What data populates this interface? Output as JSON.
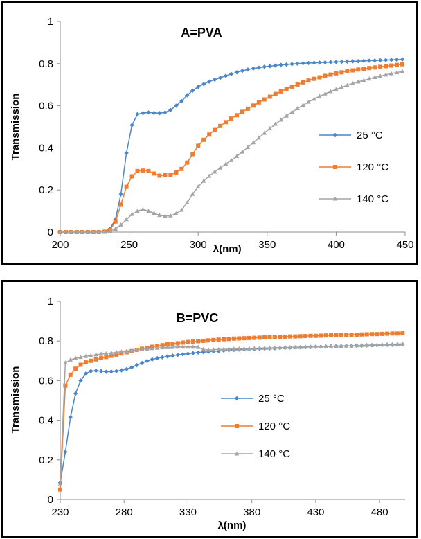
{
  "chart_data": [
    {
      "type": "line",
      "title": "A=PVA",
      "xlabel": "λ(nm)",
      "ylabel": "Transmission",
      "xlim": [
        200,
        450
      ],
      "ylim": [
        0,
        1
      ],
      "xticks": [
        "200",
        "250",
        "300",
        "350",
        "400",
        "450"
      ],
      "yticks": [
        "0",
        "0.2",
        "0.4",
        "0.6",
        "0.8",
        "1"
      ],
      "legend_position": "right",
      "grid": false,
      "series": [
        {
          "name": "25 °C",
          "color": "#4a86c8",
          "marker": "diamond",
          "x": [
            200,
            204,
            208,
            212,
            216,
            220,
            224,
            228,
            232,
            236,
            240,
            244,
            248,
            252,
            256,
            260,
            264,
            268,
            272,
            276,
            280,
            284,
            288,
            292,
            296,
            300,
            304,
            308,
            312,
            316,
            320,
            324,
            328,
            332,
            336,
            340,
            344,
            348,
            352,
            356,
            360,
            364,
            368,
            372,
            376,
            380,
            384,
            388,
            392,
            396,
            400,
            404,
            408,
            412,
            416,
            420,
            424,
            428,
            432,
            436,
            440,
            444,
            448
          ],
          "y": [
            0,
            0,
            0,
            0,
            0,
            0,
            0,
            0,
            0.002,
            0.015,
            0.06,
            0.18,
            0.375,
            0.508,
            0.56,
            0.565,
            0.568,
            0.566,
            0.565,
            0.568,
            0.58,
            0.6,
            0.622,
            0.65,
            0.672,
            0.69,
            0.703,
            0.715,
            0.724,
            0.733,
            0.742,
            0.751,
            0.759,
            0.766,
            0.772,
            0.777,
            0.781,
            0.785,
            0.788,
            0.791,
            0.794,
            0.796,
            0.798,
            0.8,
            0.802,
            0.803,
            0.804,
            0.805,
            0.806,
            0.807,
            0.808,
            0.809,
            0.81,
            0.811,
            0.812,
            0.813,
            0.814,
            0.815,
            0.816,
            0.817,
            0.818,
            0.819,
            0.82
          ]
        },
        {
          "name": "120 °C",
          "color": "#ed7d31",
          "marker": "square",
          "x": [
            200,
            204,
            208,
            212,
            216,
            220,
            224,
            228,
            232,
            236,
            240,
            244,
            248,
            252,
            256,
            260,
            264,
            268,
            272,
            276,
            280,
            284,
            288,
            292,
            296,
            300,
            304,
            308,
            312,
            316,
            320,
            324,
            328,
            332,
            336,
            340,
            344,
            348,
            352,
            356,
            360,
            364,
            368,
            372,
            376,
            380,
            384,
            388,
            392,
            396,
            400,
            404,
            408,
            412,
            416,
            420,
            424,
            428,
            432,
            436,
            440,
            444,
            448
          ],
          "y": [
            0,
            0,
            0,
            0,
            0,
            0,
            0,
            0,
            0.002,
            0.01,
            0.05,
            0.13,
            0.215,
            0.265,
            0.29,
            0.292,
            0.29,
            0.278,
            0.268,
            0.27,
            0.272,
            0.283,
            0.3,
            0.33,
            0.37,
            0.41,
            0.438,
            0.463,
            0.485,
            0.504,
            0.522,
            0.539,
            0.555,
            0.571,
            0.586,
            0.601,
            0.616,
            0.63,
            0.643,
            0.656,
            0.668,
            0.68,
            0.691,
            0.701,
            0.711,
            0.72,
            0.728,
            0.735,
            0.742,
            0.748,
            0.754,
            0.759,
            0.764,
            0.768,
            0.772,
            0.776,
            0.779,
            0.782,
            0.785,
            0.788,
            0.791,
            0.794,
            0.797
          ]
        },
        {
          "name": "140 °C",
          "color": "#a5a5a5",
          "marker": "triangle",
          "x": [
            200,
            204,
            208,
            212,
            216,
            220,
            224,
            228,
            232,
            236,
            240,
            244,
            248,
            252,
            256,
            260,
            264,
            268,
            272,
            276,
            280,
            284,
            288,
            292,
            296,
            300,
            304,
            308,
            312,
            316,
            320,
            324,
            328,
            332,
            336,
            340,
            344,
            348,
            352,
            356,
            360,
            364,
            368,
            372,
            376,
            380,
            384,
            388,
            392,
            396,
            400,
            404,
            408,
            412,
            416,
            420,
            424,
            428,
            432,
            436,
            440,
            444,
            448
          ],
          "y": [
            0,
            0,
            0,
            0,
            0,
            0,
            0,
            0,
            0.001,
            0.005,
            0.015,
            0.035,
            0.06,
            0.085,
            0.1,
            0.108,
            0.1,
            0.09,
            0.08,
            0.076,
            0.078,
            0.088,
            0.105,
            0.14,
            0.18,
            0.215,
            0.243,
            0.266,
            0.286,
            0.305,
            0.323,
            0.341,
            0.36,
            0.381,
            0.403,
            0.425,
            0.448,
            0.47,
            0.492,
            0.513,
            0.533,
            0.552,
            0.57,
            0.587,
            0.603,
            0.618,
            0.632,
            0.645,
            0.657,
            0.668,
            0.678,
            0.688,
            0.697,
            0.706,
            0.714,
            0.721,
            0.728,
            0.735,
            0.741,
            0.747,
            0.753,
            0.758,
            0.763
          ]
        }
      ]
    },
    {
      "type": "line",
      "title": "B=PVC",
      "xlabel": "λ(nm)",
      "ylabel": "Transmission",
      "xlim": [
        230,
        500
      ],
      "ylim": [
        0,
        1
      ],
      "xticks": [
        "230",
        "280",
        "330",
        "380",
        "430",
        "480"
      ],
      "yticks": [
        "0",
        "0.2",
        "0.4",
        "0.6",
        "0.8",
        "1"
      ],
      "legend_position": "center",
      "grid": false,
      "series": [
        {
          "name": "25 °C",
          "color": "#4a86c8",
          "marker": "diamond",
          "x": [
            230,
            234,
            238,
            242,
            246,
            250,
            254,
            258,
            262,
            266,
            270,
            274,
            278,
            282,
            286,
            290,
            294,
            298,
            302,
            306,
            310,
            314,
            318,
            322,
            326,
            330,
            334,
            338,
            342,
            346,
            350,
            354,
            358,
            362,
            366,
            370,
            374,
            378,
            382,
            386,
            390,
            394,
            398,
            402,
            406,
            410,
            414,
            418,
            422,
            426,
            430,
            434,
            438,
            442,
            446,
            450,
            454,
            458,
            462,
            466,
            470,
            474,
            478,
            482,
            486,
            490,
            494,
            498
          ],
          "y": [
            0.085,
            0.24,
            0.415,
            0.535,
            0.6,
            0.635,
            0.648,
            0.65,
            0.648,
            0.645,
            0.646,
            0.648,
            0.652,
            0.658,
            0.667,
            0.678,
            0.689,
            0.699,
            0.707,
            0.713,
            0.718,
            0.722,
            0.726,
            0.73,
            0.733,
            0.736,
            0.739,
            0.742,
            0.744,
            0.746,
            0.748,
            0.75,
            0.752,
            0.754,
            0.755,
            0.757,
            0.758,
            0.759,
            0.76,
            0.761,
            0.762,
            0.763,
            0.764,
            0.765,
            0.766,
            0.767,
            0.768,
            0.768,
            0.769,
            0.77,
            0.771,
            0.771,
            0.772,
            0.773,
            0.774,
            0.774,
            0.775,
            0.776,
            0.777,
            0.777,
            0.778,
            0.779,
            0.779,
            0.78,
            0.781,
            0.781,
            0.782,
            0.783
          ]
        },
        {
          "name": "120  °C",
          "color": "#ed7d31",
          "marker": "square",
          "x": [
            230,
            234,
            238,
            242,
            246,
            250,
            254,
            258,
            262,
            266,
            270,
            274,
            278,
            282,
            286,
            290,
            294,
            298,
            302,
            306,
            310,
            314,
            318,
            322,
            326,
            330,
            334,
            338,
            342,
            346,
            350,
            354,
            358,
            362,
            366,
            370,
            374,
            378,
            382,
            386,
            390,
            394,
            398,
            402,
            406,
            410,
            414,
            418,
            422,
            426,
            430,
            434,
            438,
            442,
            446,
            450,
            454,
            458,
            462,
            466,
            470,
            474,
            478,
            482,
            486,
            490,
            494,
            498
          ],
          "y": [
            0.05,
            0.575,
            0.63,
            0.66,
            0.68,
            0.692,
            0.7,
            0.707,
            0.713,
            0.719,
            0.725,
            0.731,
            0.737,
            0.743,
            0.749,
            0.755,
            0.761,
            0.766,
            0.771,
            0.775,
            0.779,
            0.783,
            0.786,
            0.789,
            0.792,
            0.795,
            0.797,
            0.799,
            0.801,
            0.803,
            0.805,
            0.807,
            0.809,
            0.81,
            0.812,
            0.813,
            0.814,
            0.815,
            0.816,
            0.817,
            0.818,
            0.819,
            0.82,
            0.821,
            0.822,
            0.823,
            0.823,
            0.824,
            0.825,
            0.826,
            0.826,
            0.827,
            0.828,
            0.829,
            0.829,
            0.83,
            0.831,
            0.832,
            0.832,
            0.833,
            0.834,
            0.835,
            0.835,
            0.836,
            0.837,
            0.838,
            0.838,
            0.839
          ]
        },
        {
          "name": "140  °C",
          "color": "#a5a5a5",
          "marker": "triangle",
          "x": [
            230,
            234,
            238,
            242,
            246,
            250,
            254,
            258,
            262,
            266,
            270,
            274,
            278,
            282,
            286,
            290,
            294,
            298,
            302,
            306,
            310,
            314,
            318,
            322,
            326,
            330,
            334,
            338,
            342,
            346,
            350,
            354,
            358,
            362,
            366,
            370,
            374,
            378,
            382,
            386,
            390,
            394,
            398,
            402,
            406,
            410,
            414,
            418,
            422,
            426,
            430,
            434,
            438,
            442,
            446,
            450,
            454,
            458,
            462,
            466,
            470,
            474,
            478,
            482,
            486,
            490,
            494,
            498
          ],
          "y": [
            0.08,
            0.69,
            0.705,
            0.713,
            0.718,
            0.723,
            0.727,
            0.731,
            0.734,
            0.737,
            0.74,
            0.743,
            0.746,
            0.749,
            0.752,
            0.755,
            0.758,
            0.761,
            0.763,
            0.765,
            0.767,
            0.768,
            0.769,
            0.77,
            0.77,
            0.77,
            0.77,
            0.769,
            0.758,
            0.755,
            0.756,
            0.757,
            0.758,
            0.759,
            0.76,
            0.761,
            0.762,
            0.762,
            0.763,
            0.764,
            0.765,
            0.765,
            0.766,
            0.767,
            0.767,
            0.768,
            0.768,
            0.769,
            0.77,
            0.77,
            0.771,
            0.772,
            0.772,
            0.773,
            0.774,
            0.775,
            0.776,
            0.776,
            0.777,
            0.778,
            0.779,
            0.78,
            0.781,
            0.782,
            0.783,
            0.784,
            0.785,
            0.786
          ]
        }
      ]
    }
  ]
}
